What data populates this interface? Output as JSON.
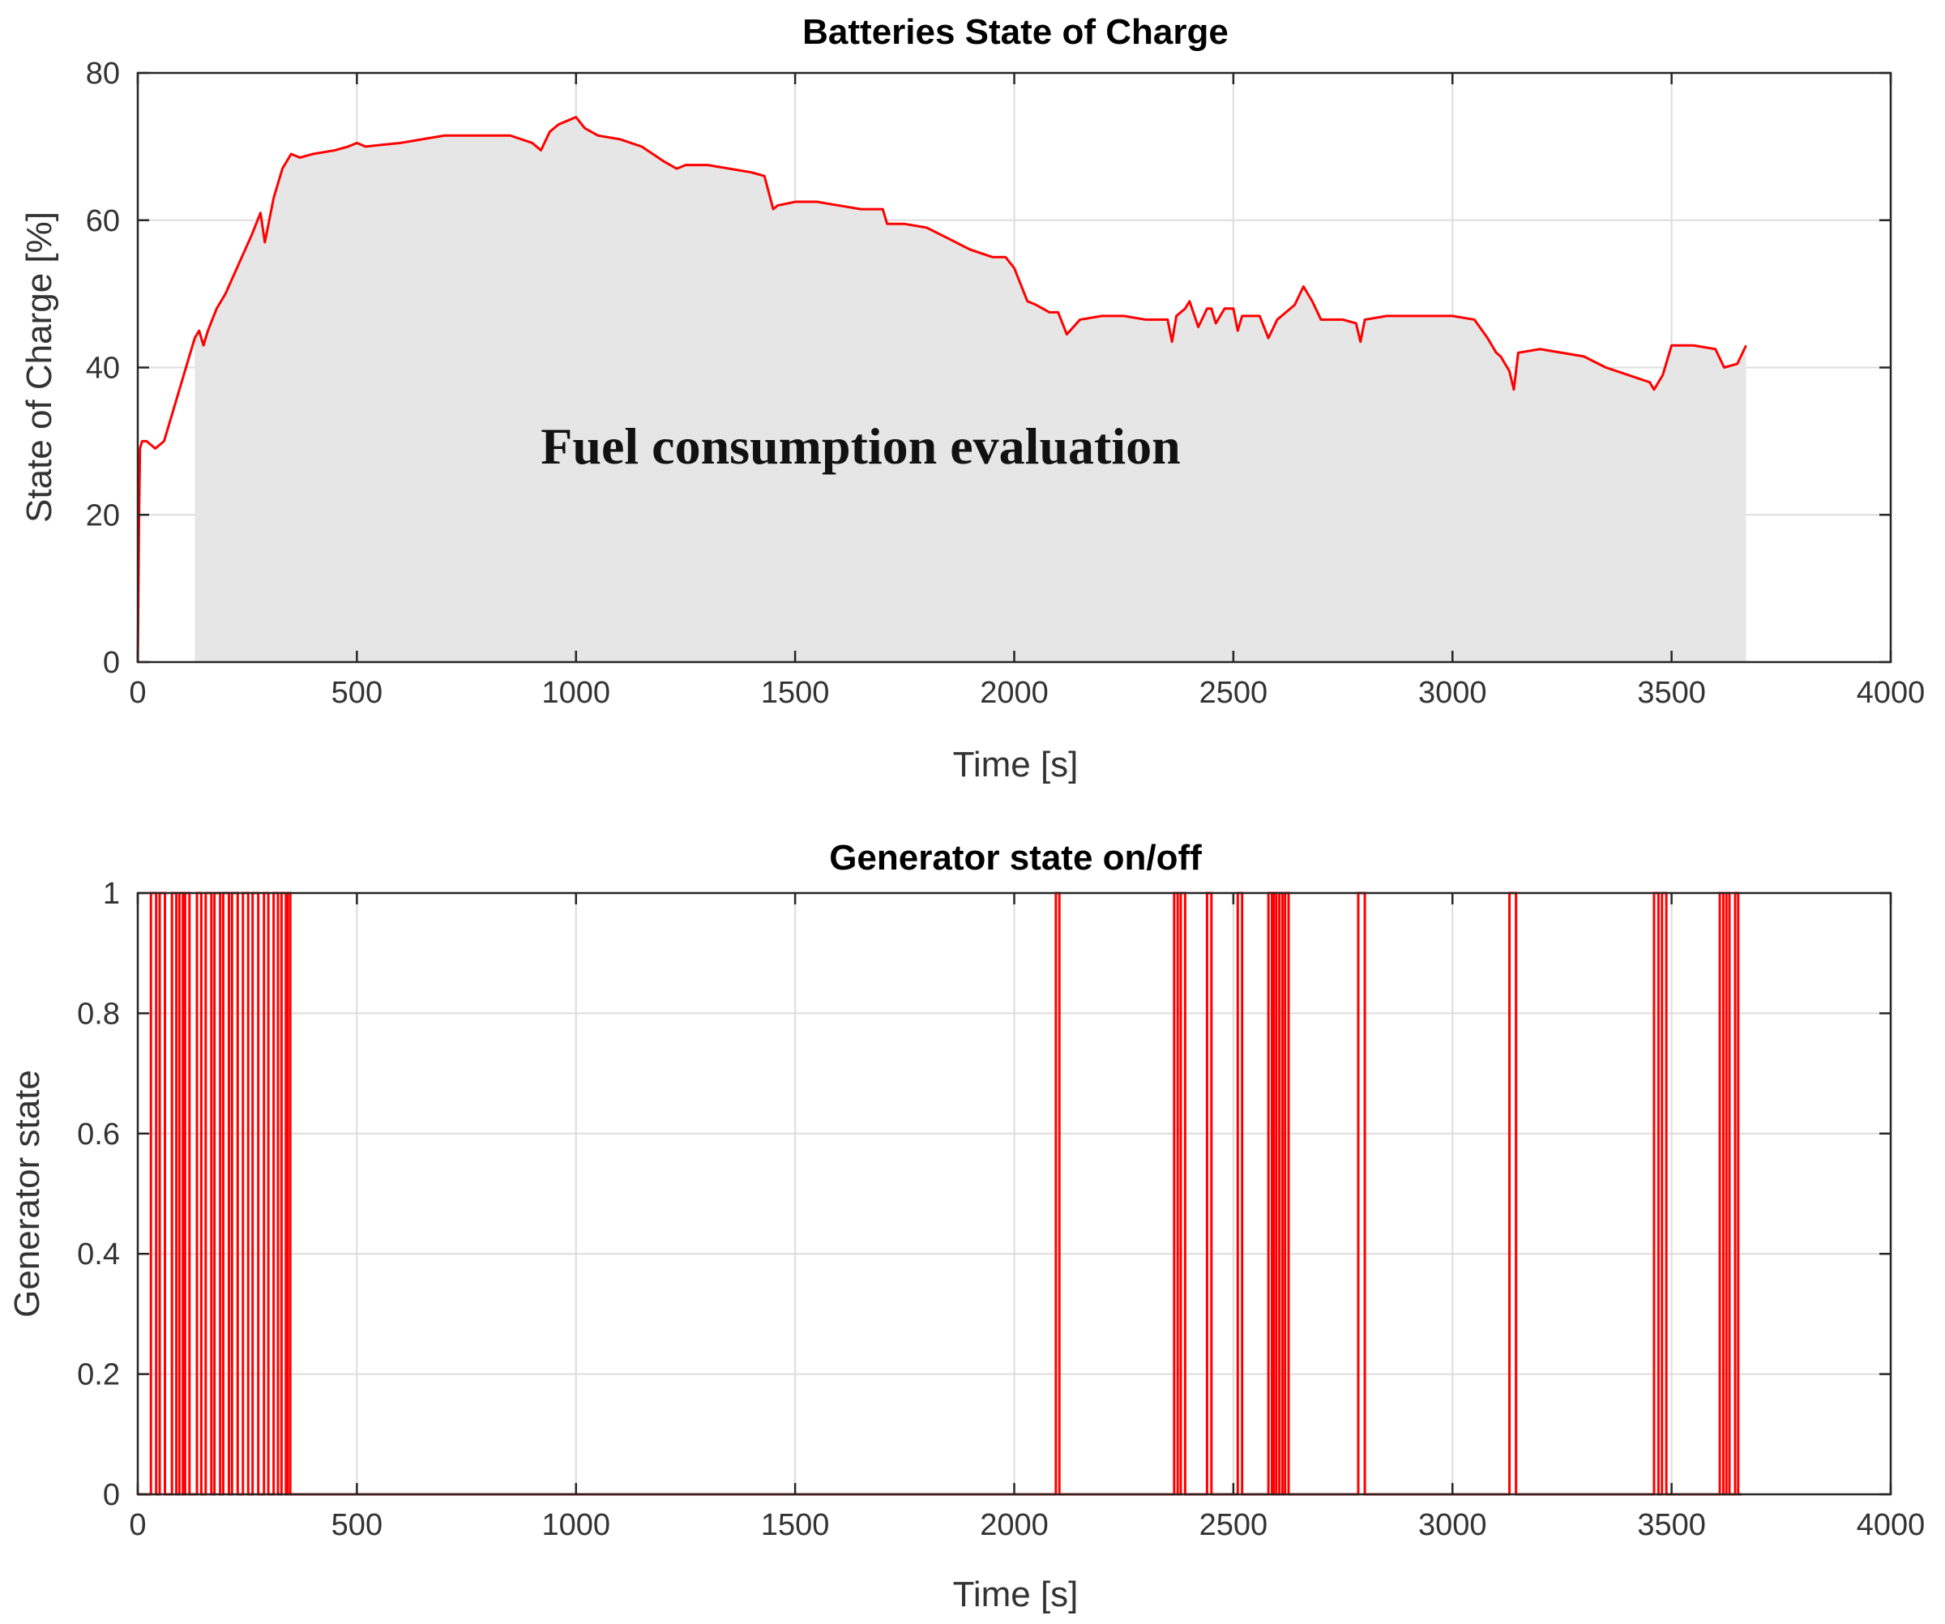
{
  "chart_data": [
    {
      "type": "line",
      "title": "Batteries State of Charge",
      "xlabel": "Time [s]",
      "ylabel": "State of Charge [%]",
      "xlim": [
        0,
        4000
      ],
      "ylim": [
        0,
        80
      ],
      "xticks": [
        "0",
        "500",
        "1000",
        "1500",
        "2000",
        "2500",
        "3000",
        "3500",
        "4000"
      ],
      "yticks": [
        "0",
        "20",
        "40",
        "60",
        "80"
      ],
      "grid": true,
      "line_color": "#ff0000",
      "shade_color": "#e6e6e6",
      "annotation": "Fuel consumption evaluation",
      "shaded_region": [
        130,
        3670
      ],
      "series": [
        {
          "x": [
            0,
            3,
            5,
            10,
            20,
            40,
            60,
            80,
            100,
            130,
            140,
            150,
            160,
            180,
            200,
            230,
            260,
            280,
            290,
            300,
            310,
            330,
            350,
            370,
            400,
            450,
            480,
            500,
            520,
            550,
            600,
            650,
            700,
            750,
            800,
            850,
            900,
            920,
            940,
            960,
            980,
            1000,
            1020,
            1050,
            1100,
            1150,
            1200,
            1230,
            1250,
            1300,
            1350,
            1400,
            1430,
            1450,
            1460,
            1500,
            1550,
            1600,
            1650,
            1700,
            1710,
            1750,
            1800,
            1850,
            1900,
            1950,
            1980,
            2000,
            2030,
            2050,
            2080,
            2100,
            2120,
            2150,
            2200,
            2250,
            2300,
            2350,
            2360,
            2370,
            2390,
            2400,
            2420,
            2440,
            2450,
            2460,
            2480,
            2500,
            2510,
            2520,
            2540,
            2560,
            2580,
            2600,
            2620,
            2640,
            2660,
            2680,
            2700,
            2750,
            2780,
            2790,
            2800,
            2850,
            2900,
            3000,
            3050,
            3080,
            3100,
            3110,
            3130,
            3140,
            3150,
            3200,
            3300,
            3350,
            3400,
            3450,
            3460,
            3480,
            3500,
            3550,
            3600,
            3620,
            3650,
            3670
          ],
          "y": [
            0,
            20,
            29,
            30,
            30,
            29,
            30,
            34,
            38,
            44,
            45,
            43,
            45,
            48,
            50,
            54,
            58,
            61,
            57,
            60,
            63,
            67,
            69,
            68.5,
            69,
            69.5,
            70,
            70.5,
            70,
            70.2,
            70.5,
            71,
            71.5,
            71.5,
            71.5,
            71.5,
            70.5,
            69.5,
            72,
            73,
            73.5,
            74,
            72.5,
            71.5,
            71,
            70,
            68,
            67,
            67.5,
            67.5,
            67,
            66.5,
            66,
            61.5,
            62,
            62.5,
            62.5,
            62,
            61.5,
            61.5,
            59.5,
            59.5,
            59,
            57.5,
            56,
            55,
            55,
            53.5,
            49,
            48.5,
            47.5,
            47.5,
            44.5,
            46.5,
            47,
            47,
            46.5,
            46.5,
            43.5,
            47,
            48,
            49,
            45.5,
            48,
            48,
            46,
            48,
            48,
            45,
            47,
            47,
            47,
            44,
            46.5,
            47.5,
            48.5,
            51,
            49,
            46.5,
            46.5,
            46,
            43.5,
            46.5,
            47,
            47,
            47,
            46.5,
            44,
            42,
            41.5,
            39.5,
            37,
            42,
            42.5,
            41.5,
            40,
            39,
            38,
            37,
            39,
            43,
            43,
            42.5,
            40,
            40.5,
            43
          ]
        }
      ]
    },
    {
      "type": "line",
      "title": "Generator state on/off",
      "xlabel": "Time [s]",
      "ylabel": "Generator state",
      "xlim": [
        0,
        4000
      ],
      "ylim": [
        0,
        1
      ],
      "xticks": [
        "0",
        "500",
        "1000",
        "1500",
        "2000",
        "2500",
        "3000",
        "3500",
        "4000"
      ],
      "yticks": [
        "0",
        "0.2",
        "0.4",
        "0.6",
        "0.8",
        "1"
      ],
      "grid": true,
      "line_color": "#ff0000",
      "x_end": 3660,
      "on_intervals": [
        [
          30,
          42
        ],
        [
          50,
          62
        ],
        [
          78,
          88
        ],
        [
          95,
          103
        ],
        [
          108,
          118
        ],
        [
          135,
          145
        ],
        [
          155,
          168
        ],
        [
          175,
          188
        ],
        [
          195,
          208
        ],
        [
          215,
          228
        ],
        [
          240,
          252
        ],
        [
          262,
          275
        ],
        [
          288,
          298
        ],
        [
          310,
          320
        ],
        [
          328,
          338
        ],
        [
          342,
          348
        ],
        [
          2095,
          2103
        ],
        [
          2365,
          2373
        ],
        [
          2380,
          2390
        ],
        [
          2440,
          2450
        ],
        [
          2510,
          2520
        ],
        [
          2580,
          2588
        ],
        [
          2592,
          2598
        ],
        [
          2605,
          2612
        ],
        [
          2618,
          2626
        ],
        [
          2785,
          2800
        ],
        [
          3130,
          3145
        ],
        [
          3460,
          3470
        ],
        [
          3478,
          3488
        ],
        [
          3610,
          3618
        ],
        [
          3625,
          3632
        ],
        [
          3645,
          3652
        ]
      ]
    }
  ]
}
